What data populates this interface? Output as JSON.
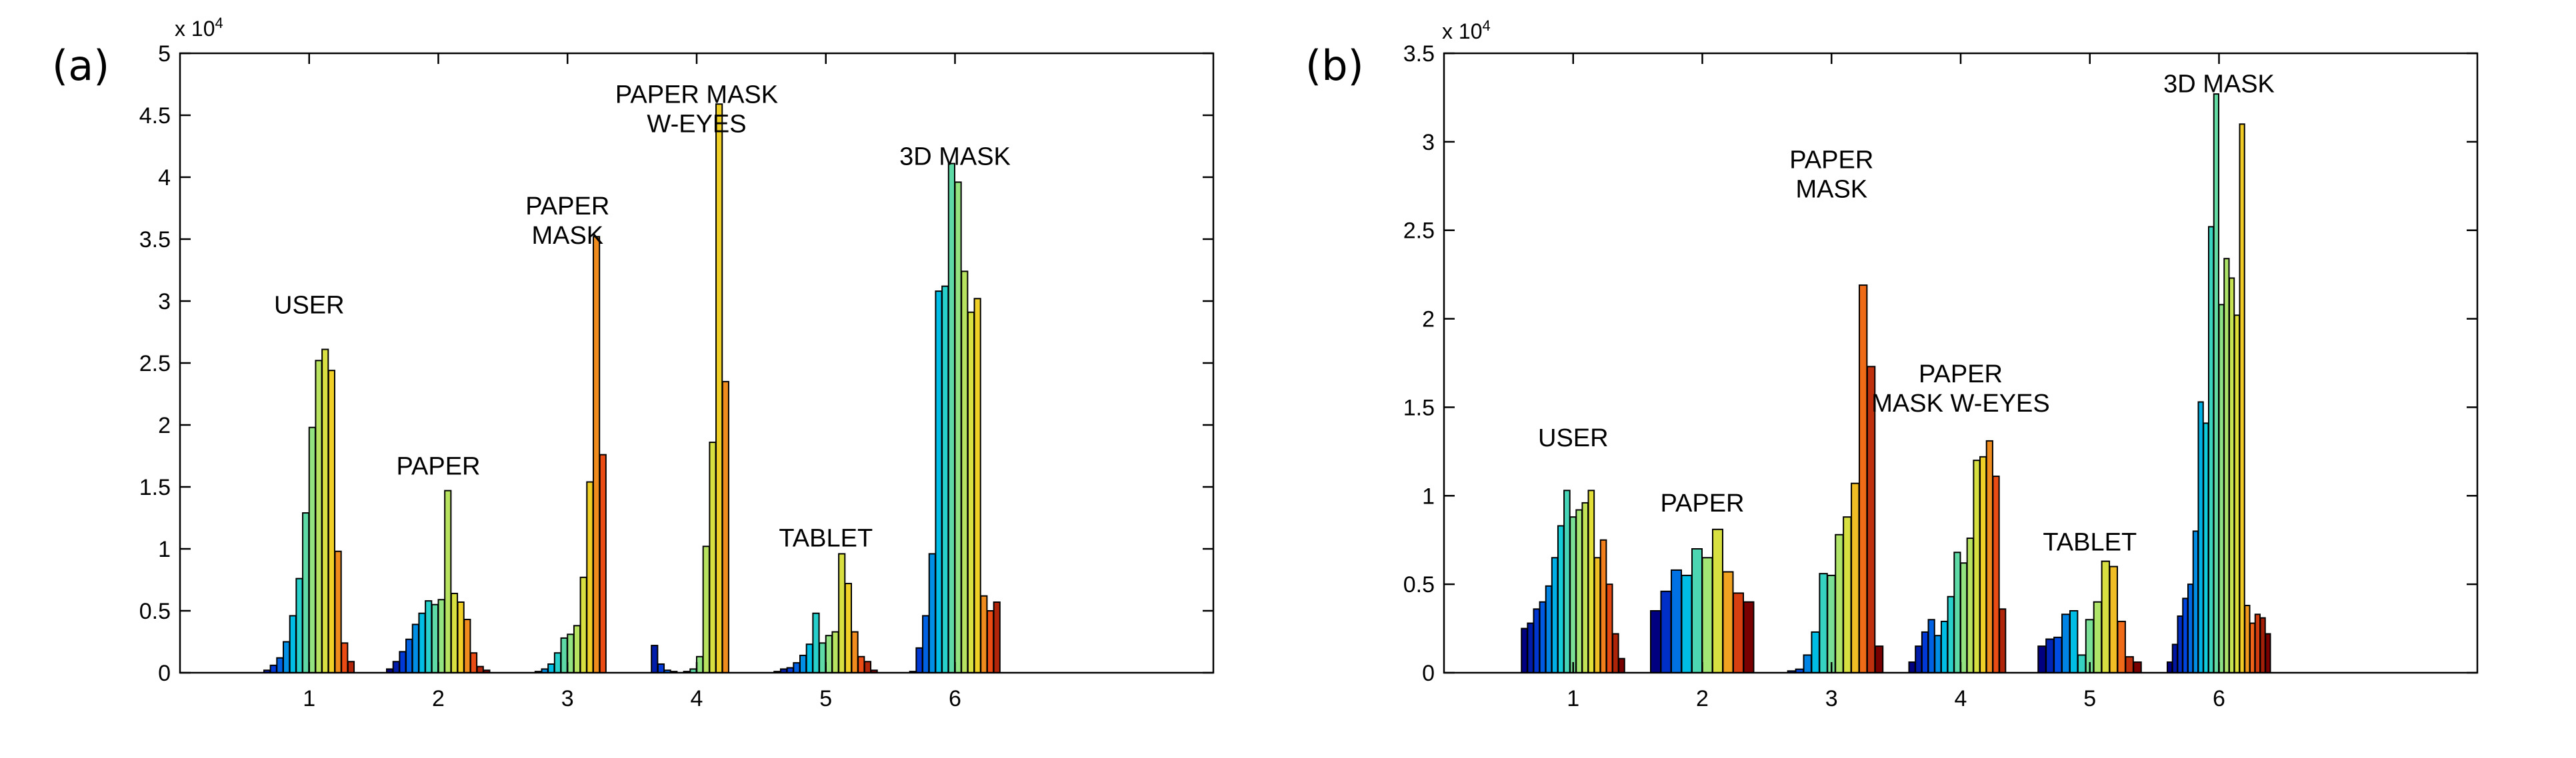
{
  "chart_data": [
    {
      "type": "bar",
      "panel_label": "(a)",
      "x_ticks": [
        "1",
        "2",
        "3",
        "4",
        "5",
        "6"
      ],
      "y_ticks": [
        "0",
        "0.5",
        "1",
        "1.5",
        "2",
        "2.5",
        "3",
        "3.5",
        "4",
        "4.5",
        "5"
      ],
      "y_exponent": {
        "base": "x 10",
        "power": "4"
      },
      "xlim": [
        0,
        8
      ],
      "ylim": [
        0,
        50000
      ],
      "grid": false,
      "groups": [
        {
          "category": "1",
          "label_lines": [
            "USER"
          ],
          "label_y": 29000,
          "values": [
            0,
            200,
            600,
            1200,
            2500,
            4600,
            7600,
            12900,
            19800,
            25200,
            26100,
            24400,
            9800,
            2400,
            900,
            0
          ]
        },
        {
          "category": "2",
          "label_lines": [
            "PAPER"
          ],
          "label_y": 16000,
          "values": [
            300,
            900,
            1700,
            2700,
            3900,
            4800,
            5800,
            5500,
            5900,
            14700,
            6400,
            5700,
            4300,
            1600,
            500,
            200
          ]
        },
        {
          "category": "3",
          "label_lines": [
            "PAPER",
            "MASK"
          ],
          "label_y": 37000,
          "values": [
            0,
            0,
            0,
            100,
            300,
            700,
            1600,
            2800,
            3100,
            3800,
            7700,
            15400,
            35200,
            17600,
            0,
            0
          ]
        },
        {
          "category": "4",
          "label_lines": [
            "PAPER MASK",
            "W-EYES"
          ],
          "label_y": 46000,
          "values": [
            0,
            2200,
            700,
            200,
            100,
            0,
            100,
            300,
            1300,
            10200,
            18600,
            45900,
            23500,
            0,
            0,
            0
          ]
        },
        {
          "category": "5",
          "label_lines": [
            "TABLET"
          ],
          "label_y": 10200,
          "values": [
            100,
            300,
            400,
            800,
            1400,
            2300,
            4800,
            2400,
            3000,
            3300,
            9600,
            7200,
            3300,
            1300,
            900,
            200
          ]
        },
        {
          "category": "6",
          "label_lines": [
            "3D MASK"
          ],
          "label_y": 41000,
          "values": [
            0,
            100,
            2000,
            4600,
            9600,
            30800,
            31200,
            41100,
            39600,
            32400,
            29100,
            30200,
            6200,
            5000,
            5700,
            0
          ]
        }
      ]
    },
    {
      "type": "bar",
      "panel_label": "(b)",
      "x_ticks": [
        "1",
        "2",
        "3",
        "4",
        "5",
        "6"
      ],
      "y_ticks": [
        "0",
        "0.5",
        "1",
        "1.5",
        "2",
        "2.5",
        "3",
        "3.5"
      ],
      "y_exponent": {
        "base": "x 10",
        "power": "4"
      },
      "xlim": [
        0,
        8
      ],
      "ylim": [
        0,
        35000
      ],
      "grid": false,
      "groups": [
        {
          "category": "1",
          "label_lines": [
            "USER"
          ],
          "label_y": 12800,
          "values": [
            2500,
            2800,
            3600,
            4000,
            4900,
            6500,
            8300,
            10300,
            8800,
            9200,
            9600,
            10300,
            6500,
            7500,
            5000,
            2200,
            800
          ]
        },
        {
          "category": "2",
          "label_lines": [
            "PAPER"
          ],
          "label_y": 9100,
          "values": [
            3500,
            4600,
            5800,
            5500,
            7000,
            6500,
            8100,
            5700,
            4500,
            4000
          ]
        },
        {
          "category": "3",
          "label_lines": [
            "PAPER",
            "MASK"
          ],
          "label_y": 28500,
          "values": [
            0,
            100,
            200,
            1000,
            2300,
            5600,
            5500,
            7800,
            8800,
            10700,
            21900,
            17300,
            1500
          ]
        },
        {
          "category": "4",
          "label_lines": [
            "PAPER",
            "MASK W-EYES"
          ],
          "label_y": 16400,
          "values": [
            600,
            1500,
            2300,
            3000,
            2100,
            2900,
            4300,
            6800,
            6200,
            7600,
            12000,
            12200,
            13100,
            11100,
            3600,
            0
          ]
        },
        {
          "category": "5",
          "label_lines": [
            "TABLET"
          ],
          "label_y": 6900,
          "values": [
            1500,
            1900,
            2000,
            3300,
            3500,
            1000,
            3000,
            4000,
            6300,
            6000,
            2900,
            900,
            600
          ]
        },
        {
          "category": "6",
          "label_lines": [
            "3D MASK"
          ],
          "label_y": 32800,
          "values": [
            600,
            1600,
            3200,
            4200,
            5000,
            8000,
            15300,
            14100,
            25200,
            32700,
            20800,
            23400,
            22300,
            20200,
            31000,
            3800,
            2800,
            3300,
            3100,
            2200
          ]
        }
      ]
    }
  ]
}
